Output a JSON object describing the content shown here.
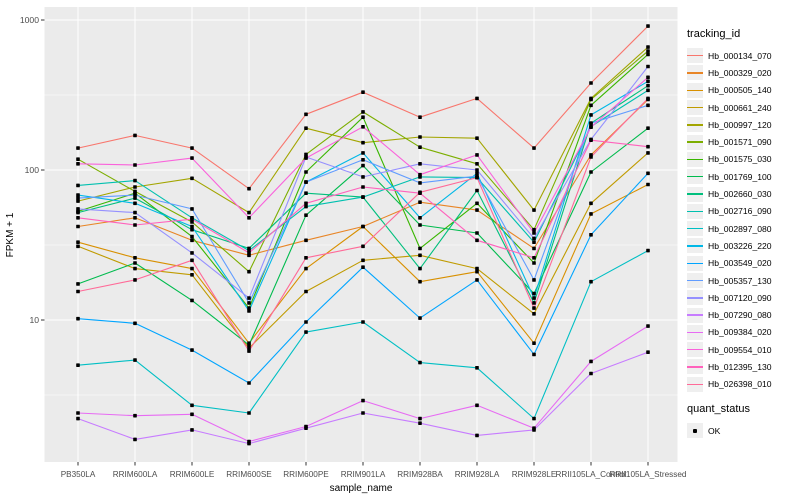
{
  "page": {
    "kind": "ggplot-style line chart of gene expression across rubber tree samples"
  },
  "y_axis": {
    "label": "FPKM + 1",
    "tick_labels": [
      "1000",
      "100",
      "10"
    ],
    "tick_values": [
      1000,
      100,
      10
    ],
    "minor_values": [
      316.23,
      31.62,
      3.162
    ]
  },
  "x_axis": {
    "label": "sample_name"
  },
  "legend": {
    "tracking_title": "tracking_id",
    "quant_title": "quant_status",
    "quant_ok_label": "OK"
  },
  "style": {
    "panel_bg": "#ebebeb",
    "grid_color": "#ffffff",
    "tick_text_color": "#4d4d4d",
    "axis_title_color": "#000000",
    "point_color": "#000000"
  },
  "chart_data": {
    "type": "line",
    "title": "",
    "xlabel": "sample_name",
    "ylabel": "FPKM + 1",
    "y_scale": "log10",
    "ylim": [
      1.1,
      1200
    ],
    "grid": true,
    "legend_position": "right",
    "point_marker": "black square (quant_status = OK)",
    "categories": [
      "PB350LA",
      "RRIM600LA",
      "RRIM600LE",
      "RRIM600SE",
      "RRIM600PE",
      "RRIM901LA",
      "RRIM928BA",
      "RRIM928LA",
      "RRIM928LE",
      "RRII105LA_Control",
      "RRII105LA_Stressed"
    ],
    "series": [
      {
        "name": "Hb_000134_070",
        "color": "#F8766D",
        "values": [
          140,
          170,
          140,
          75,
          235,
          330,
          225,
          300,
          140,
          380,
          910
        ]
      },
      {
        "name": "Hb_000329_020",
        "color": "#E88526",
        "values": [
          42,
          48,
          34,
          27,
          34,
          42,
          61,
          54,
          30,
          126,
          295
        ]
      },
      {
        "name": "Hb_000505_140",
        "color": "#D89000",
        "values": [
          33,
          26,
          22,
          7,
          22,
          42,
          18,
          21,
          7,
          51,
          80
        ]
      },
      {
        "name": "Hb_000661_240",
        "color": "#C09B00",
        "values": [
          31,
          22,
          20,
          6.5,
          15.5,
          25,
          27,
          22,
          11,
          60,
          130
        ]
      },
      {
        "name": "Hb_000997_120",
        "color": "#A3A500",
        "values": [
          62,
          77,
          88,
          52,
          190,
          152,
          166,
          163,
          54,
          300,
          660
        ]
      },
      {
        "name": "Hb_001571_090",
        "color": "#7CAE00",
        "values": [
          118,
          72,
          45,
          21,
          127,
          244,
          142,
          110,
          40,
          295,
          620
        ]
      },
      {
        "name": "Hb_001575_030",
        "color": "#39B600",
        "values": [
          53,
          70,
          36,
          12,
          97,
          225,
          30,
          60,
          24,
          270,
          590
        ]
      },
      {
        "name": "Hb_001769_100",
        "color": "#00BB4E",
        "values": [
          17.4,
          24,
          13.5,
          6.8,
          50,
          107,
          43,
          38,
          15,
          97,
          190
        ]
      },
      {
        "name": "Hb_002660_030",
        "color": "#00BF7D",
        "values": [
          52,
          65,
          40,
          30,
          70,
          66,
          22,
          73,
          13,
          205,
          365
        ]
      },
      {
        "name": "Hb_002716_090",
        "color": "#00C0AF",
        "values": [
          79,
          85,
          48,
          29,
          57,
          66,
          90,
          89,
          33,
          195,
          340
        ]
      },
      {
        "name": "Hb_002897_080",
        "color": "#00BFC4",
        "values": [
          5,
          5.4,
          2.7,
          2.4,
          8.3,
          9.7,
          5.2,
          4.8,
          2.2,
          18,
          29
        ]
      },
      {
        "name": "Hb_003226_220",
        "color": "#00B8E7",
        "values": [
          68,
          60,
          42,
          11.5,
          83,
          130,
          48,
          95,
          14,
          233,
          390
        ]
      },
      {
        "name": "Hb_003549_020",
        "color": "#00A5FF",
        "values": [
          10.2,
          9.5,
          6.3,
          3.8,
          9.7,
          22.5,
          10.3,
          18.5,
          5.9,
          37,
          95
        ]
      },
      {
        "name": "Hb_005357_130",
        "color": "#619CFF",
        "values": [
          65,
          68,
          55,
          13,
          83,
          117,
          82,
          91,
          18.5,
          205,
          270
        ]
      },
      {
        "name": "Hb_007120_090",
        "color": "#9590FF",
        "values": [
          55,
          52,
          28,
          14,
          122,
          90,
          110,
          100,
          35,
          160,
          490
        ]
      },
      {
        "name": "Hb_007290_080",
        "color": "#C77CFF",
        "values": [
          2.2,
          1.6,
          1.85,
          1.5,
          1.9,
          2.4,
          2.05,
          1.7,
          1.85,
          4.4,
          6.1
        ]
      },
      {
        "name": "Hb_009384_020",
        "color": "#E76BF3",
        "values": [
          2.4,
          2.3,
          2.35,
          1.55,
          1.95,
          2.9,
          2.2,
          2.7,
          1.9,
          5.3,
          9.1
        ]
      },
      {
        "name": "Hb_009554_010",
        "color": "#FA62DB",
        "values": [
          110,
          108,
          120,
          48,
          120,
          194,
          93,
          126,
          38,
          193,
          415
        ]
      },
      {
        "name": "Hb_012395_130",
        "color": "#FF62BC",
        "values": [
          48,
          43,
          47,
          28,
          60,
          77,
          70,
          34,
          26,
          158,
          143
        ]
      },
      {
        "name": "Hb_026398_010",
        "color": "#FF6A98",
        "values": [
          15.5,
          18.5,
          25,
          6.2,
          26,
          31,
          71,
          89,
          12,
          122,
          300
        ]
      }
    ]
  }
}
